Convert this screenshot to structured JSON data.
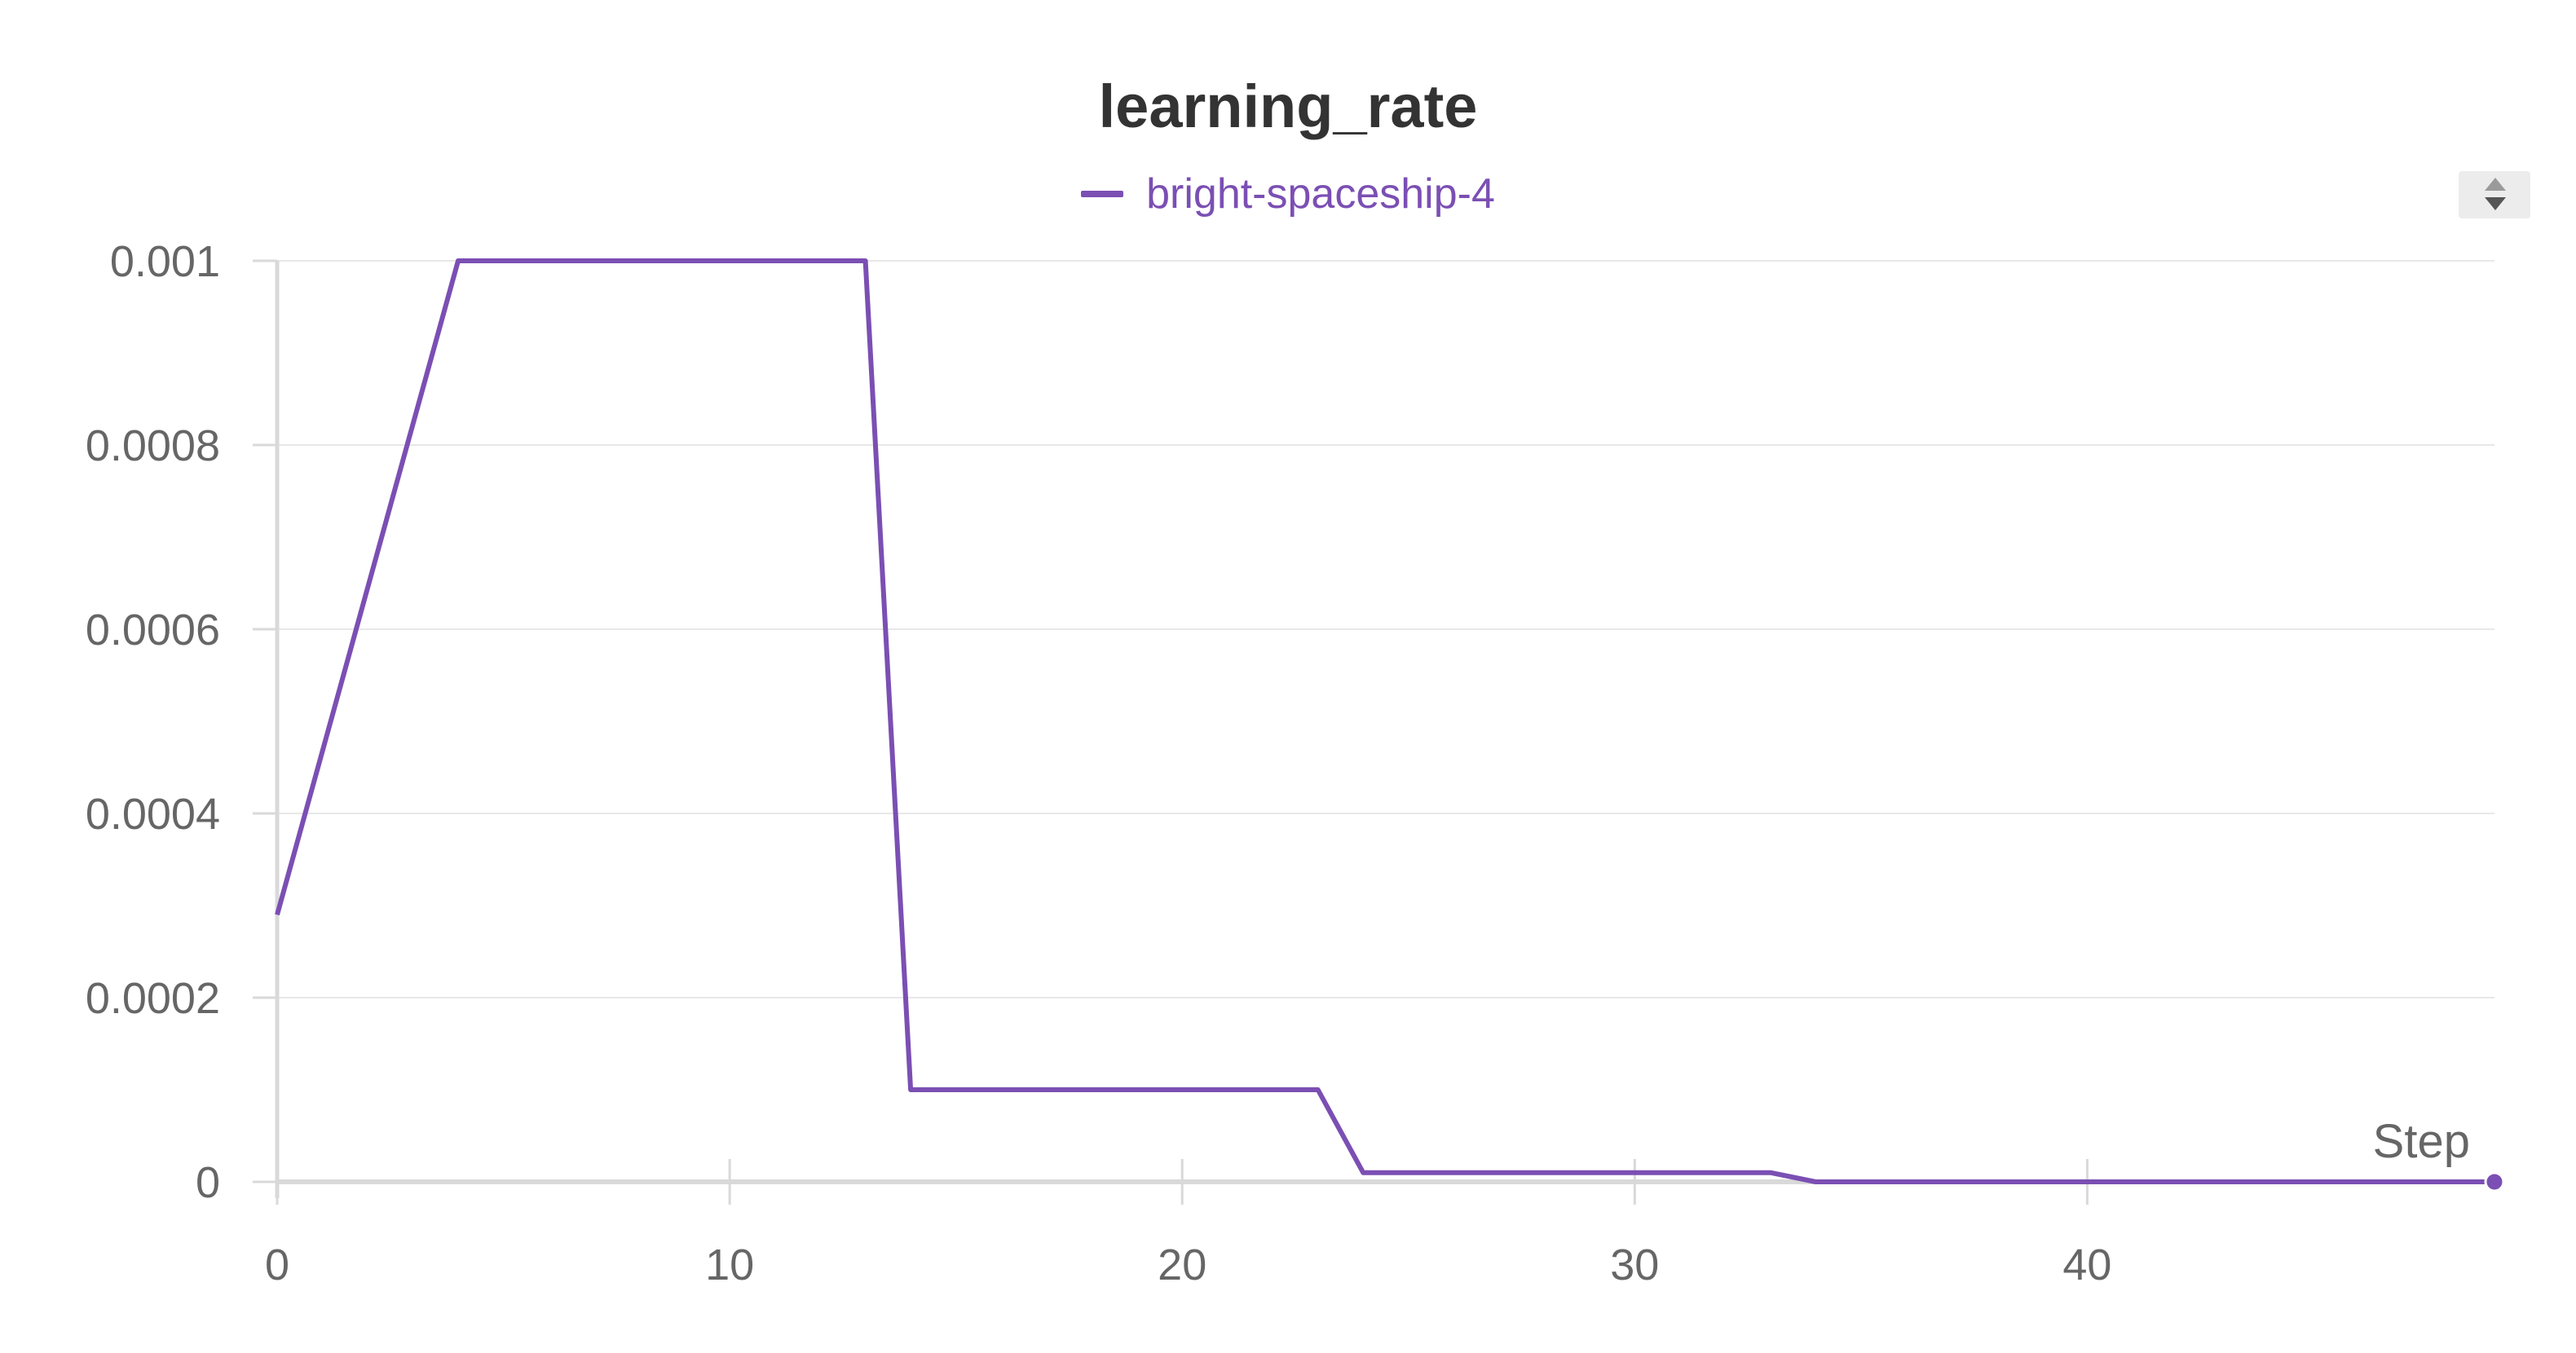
{
  "chart_data": {
    "type": "line",
    "title": "learning_rate",
    "xlabel": "Step",
    "ylabel": "",
    "xlim": [
      0,
      49
    ],
    "ylim": [
      0,
      0.001
    ],
    "x_ticks": [
      "0",
      "10",
      "20",
      "30",
      "40"
    ],
    "y_ticks": [
      "0",
      "0.0002",
      "0.0004",
      "0.0006",
      "0.0008",
      "0.001"
    ],
    "grid": true,
    "legend_position": "top-center",
    "series": [
      {
        "name": "bright-spaceship-4",
        "color": "#7b4fb3",
        "x": [
          0,
          4,
          13,
          14,
          23,
          24,
          33,
          34,
          49
        ],
        "y": [
          0.00029,
          0.001,
          0.001,
          0.0001,
          0.0001,
          1e-05,
          1e-05,
          0.0,
          0.0
        ]
      }
    ]
  }
}
